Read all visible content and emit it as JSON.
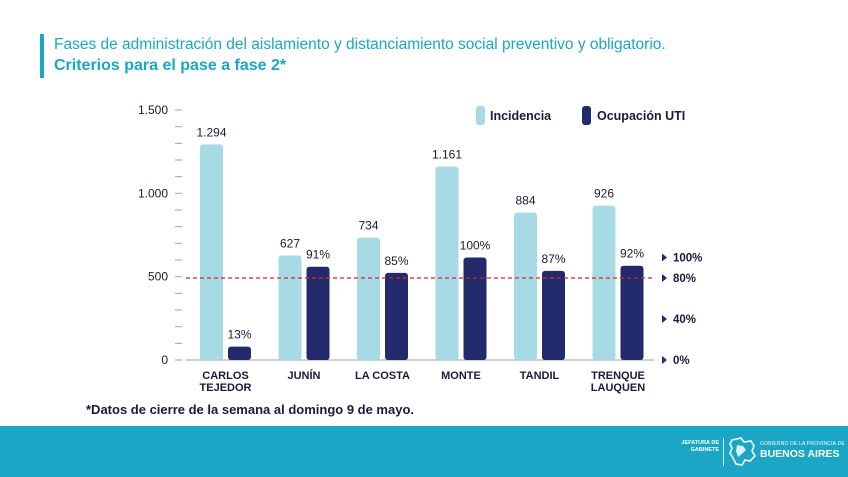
{
  "header": {
    "title": "Fases de administración del aislamiento y distanciamiento social preventivo y obligatorio.",
    "subtitle": "Criterios para el pase a fase 2*"
  },
  "footnote": "*Datos de cierre de la semana al domingo 9 de mayo.",
  "footer": {
    "jefatura_label": "JEFATURA DE GABINETE",
    "gob_small": "GOBIERNO DE LA PROVINCIA DE",
    "gob_big": "BUENOS AIRES",
    "emblem_icon": "province-map-emblem"
  },
  "colors": {
    "accent": "#1aa6c4",
    "incidencia": "#a6dbe6",
    "ocupacion": "#222a6b",
    "threshold": "#d9232e",
    "text_dark": "#1a1a3a",
    "footer_bg": "#1aa6c4"
  },
  "chart_data": {
    "type": "bar",
    "title": "Criterios para el pase a fase 2*",
    "categories": [
      [
        "CARLOS",
        "TEJEDOR"
      ],
      [
        "JUNÍN"
      ],
      [
        "LA COSTA"
      ],
      [
        "MONTE"
      ],
      [
        "TANDIL"
      ],
      [
        "TRENQUE",
        "LAUQUEN"
      ]
    ],
    "series": [
      {
        "name": "Incidencia",
        "axis": "left",
        "values": [
          1294,
          627,
          734,
          1161,
          884,
          926
        ],
        "labels": [
          "1.294",
          "627",
          "734",
          "1.161",
          "884",
          "926"
        ]
      },
      {
        "name": "Ocupación UTI",
        "axis": "right",
        "values": [
          13,
          91,
          85,
          100,
          87,
          92
        ],
        "labels": [
          "13%",
          "91%",
          "85%",
          "100%",
          "87%",
          "92%"
        ]
      }
    ],
    "left_axis": {
      "ylim": [
        0,
        1500
      ],
      "ticks": [
        0,
        500,
        1000,
        1500
      ],
      "tick_labels": [
        "0",
        "500",
        "1.000",
        "1.500"
      ]
    },
    "right_axis": {
      "ticks": [
        0,
        40,
        80,
        100
      ],
      "tick_labels": [
        "0%",
        "40%",
        "80%",
        "100%"
      ]
    },
    "threshold": {
      "axis": "right",
      "value": 80,
      "style": "dashed"
    },
    "legend_position": "top-right"
  }
}
